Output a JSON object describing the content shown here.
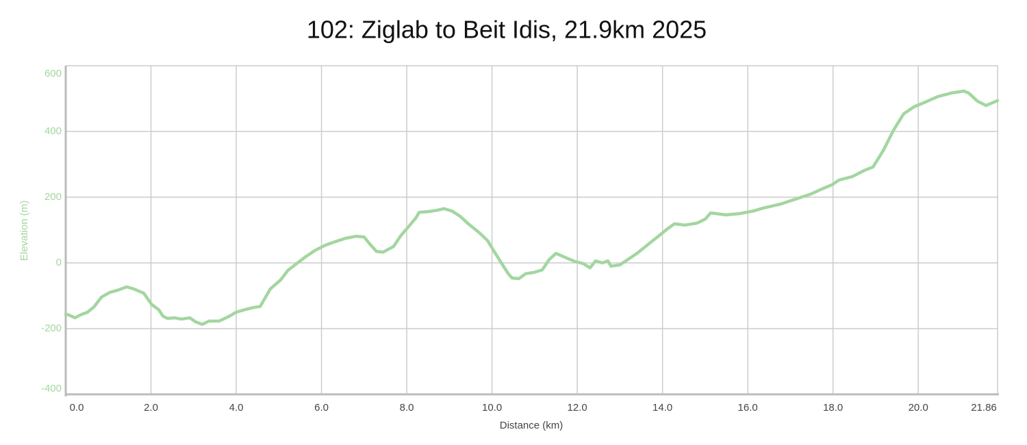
{
  "chart_data": {
    "type": "line",
    "title": "102: Ziglab to Beit Idis, 21.9km 2025",
    "xlabel": "Distance (km)",
    "ylabel": "Elevation (m)",
    "color": "#a3d6a0",
    "grid": true,
    "xlim": [
      0,
      21.86
    ],
    "ylim": [
      -400,
      600
    ],
    "xticks": [
      {
        "value": 0,
        "label": "0.0"
      },
      {
        "value": 2,
        "label": "2.0"
      },
      {
        "value": 4,
        "label": "4.0"
      },
      {
        "value": 6,
        "label": "6.0"
      },
      {
        "value": 8,
        "label": "8.0"
      },
      {
        "value": 10,
        "label": "10.0"
      },
      {
        "value": 12,
        "label": "12.0"
      },
      {
        "value": 14,
        "label": "14.0"
      },
      {
        "value": 16,
        "label": "16.0"
      },
      {
        "value": 18,
        "label": "18.0"
      },
      {
        "value": 20,
        "label": "20.0"
      },
      21.86
    ],
    "yticks": [
      -400,
      -200,
      0,
      200,
      400,
      600
    ],
    "x": [
      0,
      0.06,
      0.22,
      0.35,
      0.51,
      0.67,
      0.84,
      1.03,
      1.22,
      1.43,
      1.59,
      1.83,
      2.02,
      2.18,
      2.28,
      2.39,
      2.55,
      2.71,
      2.91,
      3.04,
      3.2,
      3.36,
      3.6,
      3.84,
      4.0,
      4.21,
      4.43,
      4.56,
      4.69,
      4.8,
      5.04,
      5.21,
      5.4,
      5.61,
      5.85,
      6.09,
      6.33,
      6.57,
      6.81,
      7.0,
      7.13,
      7.29,
      7.45,
      7.69,
      7.86,
      8.06,
      8.22,
      8.29,
      8.5,
      8.71,
      8.87,
      9.06,
      9.25,
      9.46,
      9.7,
      9.9,
      10.06,
      10.23,
      10.38,
      10.47,
      10.63,
      10.79,
      10.99,
      11.18,
      11.34,
      11.5,
      11.71,
      11.95,
      12.14,
      12.3,
      12.43,
      12.59,
      12.72,
      12.79,
      13.0,
      13.16,
      13.4,
      13.64,
      13.88,
      14.12,
      14.28,
      14.52,
      14.81,
      15.0,
      15.13,
      15.49,
      15.81,
      16.13,
      16.37,
      16.77,
      17.17,
      17.49,
      17.74,
      17.98,
      18.14,
      18.46,
      18.73,
      18.94,
      19.18,
      19.42,
      19.66,
      19.9,
      20.14,
      20.46,
      20.78,
      21.07,
      21.18,
      21.39,
      21.59,
      21.86
    ],
    "values": [
      -156,
      -158,
      -167,
      -158,
      -150,
      -133,
      -104,
      -90,
      -83,
      -73,
      -79,
      -92,
      -127,
      -142,
      -162,
      -169,
      -167,
      -171,
      -167,
      -179,
      -187,
      -177,
      -177,
      -162,
      -150,
      -142,
      -135,
      -133,
      -104,
      -79,
      -52,
      -23,
      -4,
      17,
      38,
      54,
      65,
      75,
      81,
      79,
      58,
      35,
      33,
      50,
      83,
      113,
      138,
      154,
      156,
      160,
      165,
      158,
      142,
      117,
      92,
      67,
      33,
      -2,
      -33,
      -46,
      -48,
      -33,
      -29,
      -21,
      10,
      29,
      17,
      4,
      -2,
      -15,
      6,
      0,
      6,
      -10,
      -6,
      8,
      29,
      54,
      79,
      104,
      119,
      115,
      121,
      133,
      152,
      146,
      150,
      158,
      167,
      179,
      196,
      210,
      225,
      238,
      252,
      263,
      281,
      292,
      342,
      404,
      454,
      475,
      488,
      506,
      517,
      523,
      517,
      492,
      479,
      494
    ]
  }
}
